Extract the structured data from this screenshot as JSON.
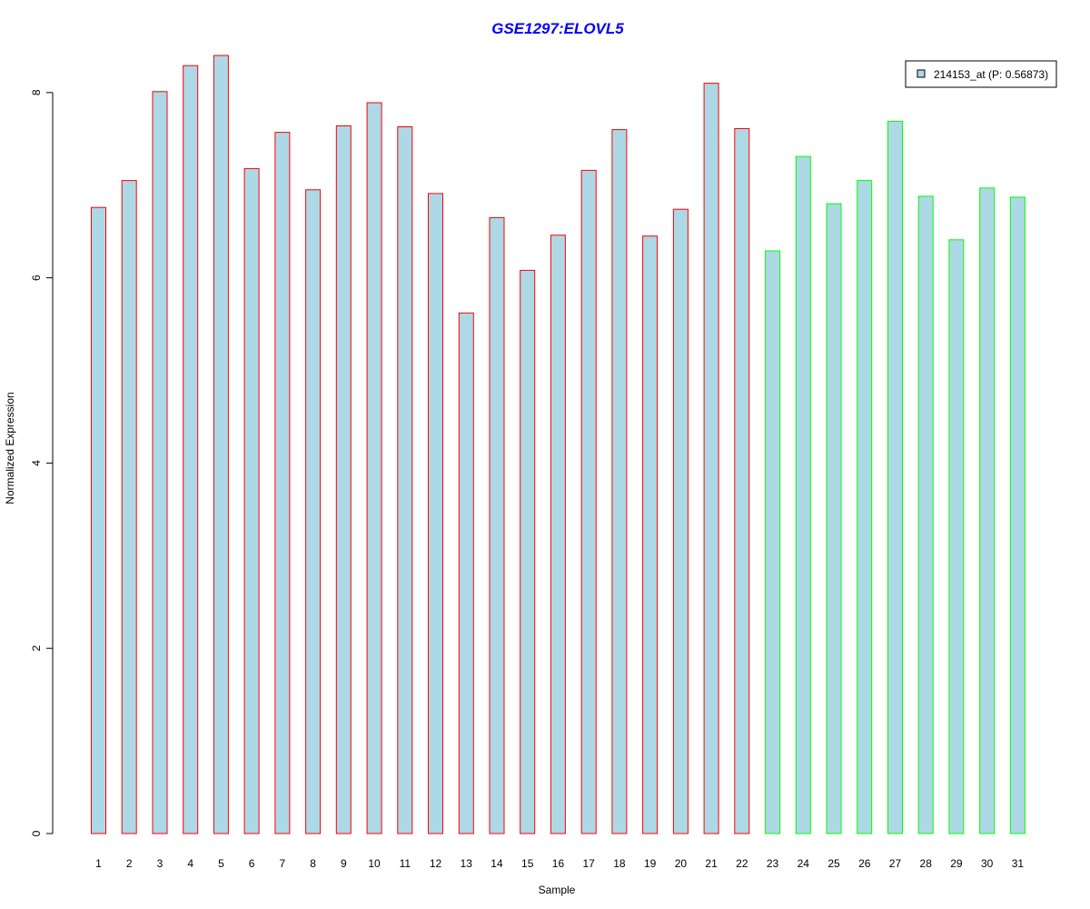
{
  "chart_data": {
    "type": "bar",
    "title": "GSE1297:ELOVL5",
    "xlabel": "Sample",
    "ylabel": "Normalized Expression",
    "ylim": [
      0,
      8.4
    ],
    "y_ticks": [
      "0",
      "2",
      "4",
      "6",
      "8"
    ],
    "categories": [
      "1",
      "2",
      "3",
      "4",
      "5",
      "6",
      "7",
      "8",
      "9",
      "10",
      "11",
      "12",
      "13",
      "14",
      "15",
      "16",
      "17",
      "18",
      "19",
      "20",
      "21",
      "22",
      "23",
      "24",
      "25",
      "26",
      "27",
      "28",
      "29",
      "30",
      "31"
    ],
    "series": [
      {
        "name": "214153_at (P: 0.56873)",
        "values": [
          6.76,
          7.05,
          8.01,
          8.29,
          8.4,
          7.18,
          7.57,
          6.95,
          7.64,
          7.89,
          7.63,
          6.91,
          5.62,
          6.65,
          6.08,
          6.46,
          7.16,
          7.6,
          6.45,
          6.74,
          8.1,
          7.61,
          6.29,
          7.31,
          6.8,
          7.05,
          7.69,
          6.88,
          6.41,
          6.97,
          6.87
        ],
        "groups": [
          "red",
          "red",
          "red",
          "red",
          "red",
          "red",
          "red",
          "red",
          "red",
          "red",
          "red",
          "red",
          "red",
          "red",
          "red",
          "red",
          "red",
          "red",
          "red",
          "red",
          "red",
          "red",
          "green",
          "green",
          "green",
          "green",
          "green",
          "green",
          "green",
          "green",
          "green"
        ]
      }
    ],
    "legend": {
      "label": "214153_at (P: 0.56873)",
      "position": "top-right"
    },
    "grid": false
  },
  "colors": {
    "bar_fill": "#add8e6",
    "border_group_1": "#ff0000",
    "border_group_2": "#00ff00",
    "title": "#0000ff",
    "axis": "#000000"
  }
}
